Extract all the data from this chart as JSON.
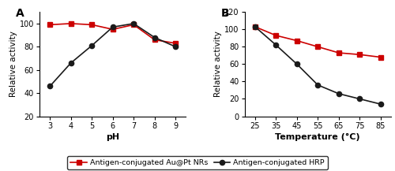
{
  "panel_A": {
    "title": "A",
    "xlabel": "pH",
    "ylabel": "Relative activity",
    "xlim": [
      2.5,
      9.5
    ],
    "ylim": [
      20,
      110
    ],
    "yticks": [
      20,
      40,
      60,
      80,
      100
    ],
    "xticks": [
      3,
      4,
      5,
      6,
      7,
      8,
      9
    ],
    "red_x": [
      3,
      4,
      5,
      6,
      7,
      8,
      9
    ],
    "red_y": [
      99,
      100,
      99,
      95,
      99,
      86,
      83
    ],
    "black_x": [
      3,
      4,
      5,
      6,
      7,
      8,
      9
    ],
    "black_y": [
      46,
      66,
      81,
      97,
      100,
      88,
      80
    ]
  },
  "panel_B": {
    "title": "B",
    "xlabel": "Temperature (°C)",
    "ylabel": "Relative activity",
    "xlim": [
      20,
      90
    ],
    "ylim": [
      0,
      120
    ],
    "yticks": [
      0,
      20,
      40,
      60,
      80,
      100,
      120
    ],
    "xticks": [
      25,
      35,
      45,
      55,
      65,
      75,
      85
    ],
    "red_x": [
      25,
      35,
      45,
      55,
      65,
      75,
      85
    ],
    "red_y": [
      103,
      93,
      87,
      80,
      73,
      71,
      68
    ],
    "black_x": [
      25,
      35,
      45,
      55,
      65,
      75,
      85
    ],
    "black_y": [
      103,
      82,
      60,
      36,
      26,
      20,
      14
    ]
  },
  "legend": {
    "red_label": "Antigen-conjugated Au@Pt NRs",
    "black_label": "Antigen-conjugated HRP"
  },
  "red_color": "#cc0000",
  "black_color": "#1a1a1a",
  "line_width": 1.2,
  "marker_size": 4.5,
  "figsize": [
    5.0,
    2.17
  ],
  "dpi": 100
}
